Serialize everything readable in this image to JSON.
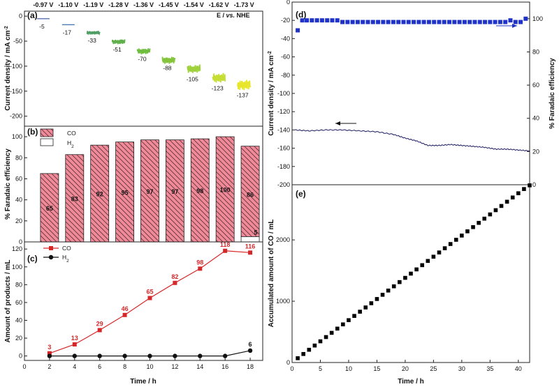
{
  "chart_data": [
    {
      "id": "a",
      "panel_label": "(a)",
      "type": "line",
      "title": "",
      "xlabel": "",
      "ylabel": "Current density / mA cm-2",
      "ylabel_parts": {
        "text": "Current density / mA cm",
        "sup": "-2"
      },
      "ylim": [
        -220,
        10
      ],
      "xlim": [
        0,
        19
      ],
      "yticks": [
        0,
        -50,
        -100,
        -150,
        -200
      ],
      "potential_header": "E / vs. NHE",
      "potential_header_parts": {
        "pre": "E / ",
        "ital": "vs.",
        "post": " NHE"
      },
      "potentials": [
        "-0.97 V",
        "-1.10 V",
        "-1.19 V",
        "-1.28 V",
        "-1.36 V",
        "-1.45 V",
        "-1.54 V",
        "-1.62 V",
        "-1.73 V"
      ],
      "segments": [
        {
          "x": [
            1,
            2
          ],
          "value": -5,
          "label": "-5",
          "color": "#5a6fb3"
        },
        {
          "x": [
            3,
            4
          ],
          "value": -17,
          "label": "-17",
          "color": "#4a78b0"
        },
        {
          "x": [
            5,
            6
          ],
          "value": -33,
          "label": "-33",
          "color": "#4f9e63"
        },
        {
          "x": [
            7,
            8
          ],
          "value": -51,
          "label": "-51",
          "color": "#5fb04a"
        },
        {
          "x": [
            9,
            10
          ],
          "value": -70,
          "label": "-70",
          "color": "#6fbd3c"
        },
        {
          "x": [
            11,
            12
          ],
          "value": -88,
          "label": "-88",
          "color": "#84c43a"
        },
        {
          "x": [
            13,
            14
          ],
          "value": -105,
          "label": "-105",
          "color": "#9fd13a"
        },
        {
          "x": [
            15,
            16
          ],
          "value": -123,
          "label": "-123",
          "color": "#c6dd33"
        },
        {
          "x": [
            17,
            18
          ],
          "value": -137,
          "label": "-137",
          "color": "#e8e62a"
        }
      ]
    },
    {
      "id": "b",
      "panel_label": "(b)",
      "type": "bar",
      "ylabel": "% Faradaic efficiency",
      "ylim": [
        0,
        110
      ],
      "yticks": [
        0,
        20,
        40,
        60,
        80,
        100
      ],
      "categories": [
        2,
        4,
        6,
        8,
        10,
        12,
        14,
        16,
        18
      ],
      "legend": [
        "CO",
        "H2"
      ],
      "legend_parts": [
        {
          "text": "CO",
          "sub": ""
        },
        {
          "text": "H",
          "sub": "2"
        }
      ],
      "series": [
        {
          "name": "CO",
          "values": [
            65,
            83,
            92,
            95,
            97,
            97,
            98,
            100,
            86
          ],
          "labels": [
            "65",
            "83",
            "92",
            "95",
            "97",
            "97",
            "98",
            "100",
            "86"
          ],
          "color": "#f08a99"
        },
        {
          "name": "H2",
          "values": [
            0,
            0,
            0,
            0,
            0,
            0,
            0,
            0,
            5
          ],
          "labels": [
            "",
            "",
            "",
            "",
            "",
            "",
            "",
            "",
            "5"
          ],
          "color": "#ffffff"
        }
      ]
    },
    {
      "id": "c",
      "panel_label": "(c)",
      "type": "line",
      "xlabel": "Time / h",
      "ylabel": "Amount of products / mL",
      "xlim": [
        0,
        19
      ],
      "ylim": [
        -5,
        128
      ],
      "xticks": [
        0,
        2,
        4,
        6,
        8,
        10,
        12,
        14,
        16,
        18
      ],
      "yticks": [
        0,
        20,
        40,
        60,
        80,
        100,
        120
      ],
      "legend": [
        "CO",
        "H2"
      ],
      "legend_parts": [
        {
          "text": "CO",
          "sub": ""
        },
        {
          "text": "H",
          "sub": "2"
        }
      ],
      "series": [
        {
          "name": "CO",
          "x": [
            2,
            4,
            6,
            8,
            10,
            12,
            14,
            16,
            18
          ],
          "values": [
            3,
            13,
            29,
            46,
            65,
            82,
            98,
            118,
            116
          ],
          "labels": [
            "3",
            "13",
            "29",
            "46",
            "65",
            "82",
            "98",
            "118",
            "116"
          ],
          "color": "#d62728"
        },
        {
          "name": "H2",
          "x": [
            2,
            4,
            6,
            8,
            10,
            12,
            14,
            16,
            18
          ],
          "values": [
            0,
            0,
            0,
            0,
            0,
            0,
            0,
            0,
            6
          ],
          "labels": [
            "",
            "",
            "",
            "",
            "",
            "",
            "",
            "",
            "6"
          ],
          "color": "#111111"
        }
      ]
    },
    {
      "id": "d",
      "panel_label": "(d)",
      "type": "line",
      "ylabel": "Current density / mA cm-2",
      "ylabel_parts": {
        "text": "Current density / mA cm",
        "sup": "-2"
      },
      "y2label": "% Faradaic efficiency",
      "xlim": [
        0,
        42
      ],
      "ylim": [
        -200,
        0
      ],
      "yticks": [
        0,
        -20,
        -40,
        -60,
        -80,
        -100,
        -120,
        -140,
        -160,
        -180,
        -200
      ],
      "y2lim": [
        0,
        110
      ],
      "y2ticks": [
        0,
        20,
        40,
        60,
        80,
        100
      ],
      "series": [
        {
          "name": "Current density",
          "axis": "left",
          "x": [
            0.5,
            3,
            6,
            9,
            12,
            15,
            18,
            20,
            22,
            24,
            26,
            28,
            30,
            32,
            34,
            36,
            38,
            40,
            42
          ],
          "values": [
            -140,
            -141,
            -140,
            -140,
            -141,
            -142,
            -145,
            -149,
            -152,
            -157,
            -157,
            -156,
            -157,
            -158,
            -159,
            -161,
            -161,
            -162,
            -163
          ],
          "color": "#1a1a5e"
        },
        {
          "name": "Faradaic efficiency",
          "axis": "right",
          "x": [
            1,
            1.8,
            2.6,
            3.5,
            4.4,
            5.3,
            6.2,
            7.1,
            8,
            8.9,
            9.8,
            10.7,
            11.6,
            12.5,
            13.4,
            14.3,
            15.2,
            16.1,
            17,
            17.9,
            18.8,
            19.7,
            20.6,
            21.5,
            22.4,
            23.3,
            24.2,
            25.1,
            26,
            26.9,
            27.8,
            28.7,
            29.6,
            30.5,
            31.4,
            32.3,
            33.2,
            34.1,
            35,
            35.9,
            36.8,
            37.7,
            38.6,
            39.5,
            40.4,
            41.3
          ],
          "values": [
            93,
            99,
            99,
            99,
            99,
            99,
            99,
            99,
            99,
            98,
            98,
            98,
            98,
            98,
            98,
            98,
            98,
            98,
            98,
            98,
            98,
            98,
            98,
            98,
            98,
            98,
            98,
            98,
            98,
            98,
            98,
            98,
            98,
            98,
            98,
            98,
            98,
            98,
            98,
            98,
            98,
            98,
            99,
            98,
            98,
            100
          ],
          "color": "#1f33c8"
        }
      ]
    },
    {
      "id": "e",
      "panel_label": "(e)",
      "type": "scatter",
      "xlabel": "Time / h",
      "ylabel": "Accumulated amount of CO / mL",
      "xlim": [
        0,
        42
      ],
      "ylim": [
        0,
        2900
      ],
      "xticks": [
        0,
        5,
        10,
        15,
        20,
        25,
        30,
        35,
        40
      ],
      "yticks": [
        0,
        1000,
        2000
      ],
      "series": [
        {
          "name": "CO",
          "x": [
            1,
            2,
            3,
            4,
            5,
            6,
            7,
            8,
            9,
            10,
            11,
            12,
            13,
            14,
            15,
            16,
            17,
            18,
            19,
            20,
            21,
            22,
            23,
            24,
            25,
            26,
            27,
            28,
            29,
            30,
            31,
            32,
            33,
            34,
            35,
            36,
            37,
            38,
            39,
            40,
            41,
            42
          ],
          "values": [
            70,
            139,
            208,
            277,
            346,
            415,
            484,
            553,
            622,
            691,
            760,
            829,
            898,
            967,
            1036,
            1105,
            1174,
            1243,
            1312,
            1381,
            1450,
            1519,
            1588,
            1657,
            1726,
            1795,
            1864,
            1933,
            2002,
            2071,
            2140,
            2209,
            2278,
            2347,
            2416,
            2485,
            2554,
            2623,
            2692,
            2761,
            2830,
            2890
          ],
          "color": "#000000"
        }
      ]
    }
  ]
}
